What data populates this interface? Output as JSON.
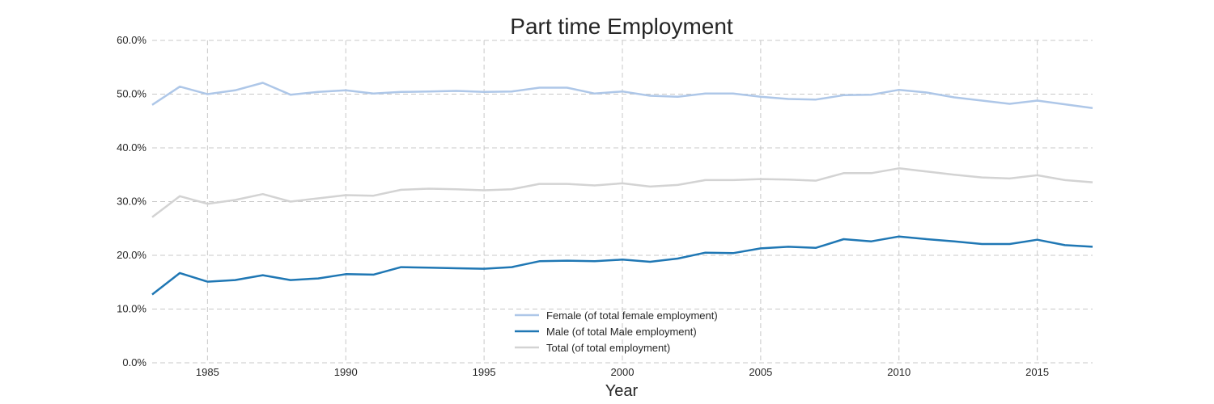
{
  "chart_data": {
    "type": "line",
    "title": "Part time Employment",
    "xlabel": "Year",
    "ylabel": "",
    "xlim": [
      1983,
      2017
    ],
    "ylim": [
      0,
      60
    ],
    "grid": true,
    "legend_position": "bottom-center",
    "x_ticks": [
      1985,
      1990,
      1995,
      2000,
      2005,
      2010,
      2015
    ],
    "y_ticks": [
      0,
      10,
      20,
      30,
      40,
      50,
      60
    ],
    "y_tick_labels": [
      "0.0%",
      "10.0%",
      "20.0%",
      "30.0%",
      "40.0%",
      "50.0%",
      "60.0%"
    ],
    "x": [
      1983,
      1984,
      1985,
      1986,
      1987,
      1988,
      1989,
      1990,
      1991,
      1992,
      1993,
      1994,
      1995,
      1996,
      1997,
      1998,
      1999,
      2000,
      2001,
      2002,
      2003,
      2004,
      2005,
      2006,
      2007,
      2008,
      2009,
      2010,
      2011,
      2012,
      2013,
      2014,
      2015,
      2016,
      2017
    ],
    "series": [
      {
        "name": "Female (of total female employment)",
        "color": "#aec7e8",
        "values": [
          48.0,
          51.4,
          50.0,
          50.7,
          52.1,
          49.9,
          50.4,
          50.7,
          50.1,
          50.4,
          50.5,
          50.6,
          50.4,
          50.5,
          51.2,
          51.2,
          50.1,
          50.5,
          49.7,
          49.5,
          50.1,
          50.1,
          49.5,
          49.1,
          49.0,
          49.8,
          49.9,
          50.8,
          50.3,
          49.4,
          48.8,
          48.2,
          48.8,
          48.1,
          47.4
        ]
      },
      {
        "name": "Male (of total Male employment)",
        "color": "#1f77b4",
        "values": [
          12.7,
          16.7,
          15.1,
          15.4,
          16.3,
          15.4,
          15.7,
          16.5,
          16.4,
          17.8,
          17.7,
          17.6,
          17.5,
          17.8,
          18.9,
          19.0,
          18.9,
          19.2,
          18.8,
          19.4,
          20.5,
          20.4,
          21.3,
          21.6,
          21.4,
          23.0,
          22.6,
          23.5,
          23.0,
          22.6,
          22.1,
          22.1,
          22.9,
          21.9,
          21.6
        ]
      },
      {
        "name": "Total (of total employment)",
        "color": "#d3d3d3",
        "values": [
          27.1,
          31.0,
          29.6,
          30.3,
          31.4,
          30.0,
          30.6,
          31.2,
          31.1,
          32.2,
          32.4,
          32.3,
          32.1,
          32.3,
          33.3,
          33.3,
          33.0,
          33.4,
          32.8,
          33.1,
          34.0,
          34.0,
          34.2,
          34.1,
          33.9,
          35.3,
          35.3,
          36.2,
          35.6,
          35.0,
          34.5,
          34.3,
          34.9,
          34.0,
          33.6
        ]
      }
    ]
  }
}
